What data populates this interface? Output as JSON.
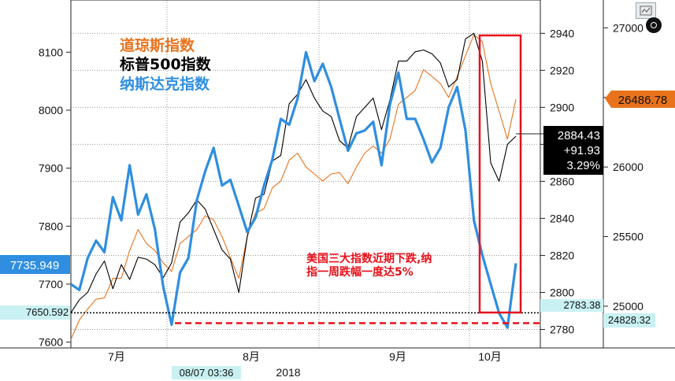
{
  "chart_data": {
    "type": "line",
    "title": "",
    "year_label": "2018",
    "month_labels": [
      "7月",
      "8月",
      "9月",
      "10月"
    ],
    "legend": [
      {
        "name": "道琼斯指数",
        "color": "#e8731c"
      },
      {
        "name": "标普500指数",
        "color": "#000000"
      },
      {
        "name": "纳斯达克指数",
        "color": "#2f8ee0"
      }
    ],
    "axes": {
      "nasdaq_left": {
        "ticks": [
          7600,
          7700,
          7800,
          7900,
          8000,
          8100
        ],
        "range": [
          7590,
          8190
        ]
      },
      "sp500_right": {
        "ticks": [
          2780,
          2800,
          2820,
          2840,
          2860,
          2880,
          2900,
          2920,
          2940
        ],
        "range": [
          2770,
          2958
        ]
      },
      "dow_far_right": {
        "ticks": [
          25000,
          25500,
          26000,
          26500,
          27000
        ],
        "range": [
          24700,
          27200
        ]
      }
    },
    "series": [
      {
        "name": "纳斯达克指数",
        "axis": "nasdaq_left",
        "color": "#2f8ee0",
        "values": [
          7700,
          7690,
          7745,
          7775,
          7755,
          7850,
          7810,
          7905,
          7820,
          7855,
          7795,
          7695,
          7630,
          7720,
          7745,
          7845,
          7895,
          7935,
          7870,
          7880,
          7835,
          7790,
          7815,
          7870,
          7915,
          7985,
          7975,
          8020,
          8100,
          8050,
          8080,
          8040,
          7985,
          7930,
          7960,
          7965,
          7980,
          7905,
          8010,
          8065,
          7985,
          7985,
          7950,
          7910,
          7935,
          8005,
          8040,
          7965,
          7810,
          7750,
          7700,
          7650,
          7625,
          7735.949
        ]
      },
      {
        "name": "标普500指数",
        "axis": "sp500_right",
        "color": "#000000",
        "values": [
          2789,
          2796,
          2800,
          2810,
          2817,
          2802,
          2815,
          2807,
          2819,
          2818,
          2815,
          2808,
          2816,
          2838,
          2843,
          2850,
          2845,
          2834,
          2823,
          2818,
          2800,
          2830,
          2851,
          2853,
          2871,
          2874,
          2902,
          2907,
          2915,
          2905,
          2898,
          2895,
          2882,
          2878,
          2895,
          2900,
          2905,
          2888,
          2904,
          2925,
          2925,
          2930,
          2931,
          2929,
          2924,
          2911,
          2915,
          2937,
          2940,
          2925,
          2870,
          2860,
          2880,
          2884.43
        ]
      },
      {
        "name": "道琼斯指数",
        "axis": "dow_far_right",
        "color": "#e8731c",
        "values": [
          24760,
          24900,
          24980,
          25050,
          25060,
          25200,
          25200,
          25400,
          25550,
          25450,
          25400,
          25310,
          25250,
          25450,
          25500,
          25550,
          25650,
          25620,
          25500,
          25350,
          25200,
          25500,
          25670,
          25700,
          25850,
          25900,
          26050,
          26100,
          26000,
          25950,
          25900,
          25950,
          25960,
          25880,
          26000,
          26100,
          26150,
          26100,
          26200,
          26450,
          26500,
          26550,
          26700,
          26650,
          26600,
          26500,
          26650,
          26800,
          26950,
          26900,
          26600,
          26400,
          26200,
          26486.78
        ]
      }
    ],
    "reference_lines": [
      {
        "axis": "nasdaq_left",
        "value": 7650.592,
        "style": "dotted",
        "color": "#000000"
      },
      {
        "axis": "sp500_right",
        "value": 2783.38,
        "style": "dashed",
        "color": "#e8101a"
      }
    ],
    "last_value_labels": {
      "nasdaq": "7735.949",
      "nasdaq_ref": "7650.592",
      "sp500": "2884.43",
      "sp500_change": "+91.93",
      "sp500_change_pct": "3.29%",
      "sp500_ref": "2783.38",
      "dow": "26486.78",
      "dow_ref": "24828.32"
    },
    "crosshair_date": "08/07 03:36",
    "annotation": [
      "美国三大指数近期下跌,纳",
      "指一周跌幅一度达5%"
    ]
  },
  "ui": {
    "toolbar_icon": "chart-settings-icon"
  }
}
